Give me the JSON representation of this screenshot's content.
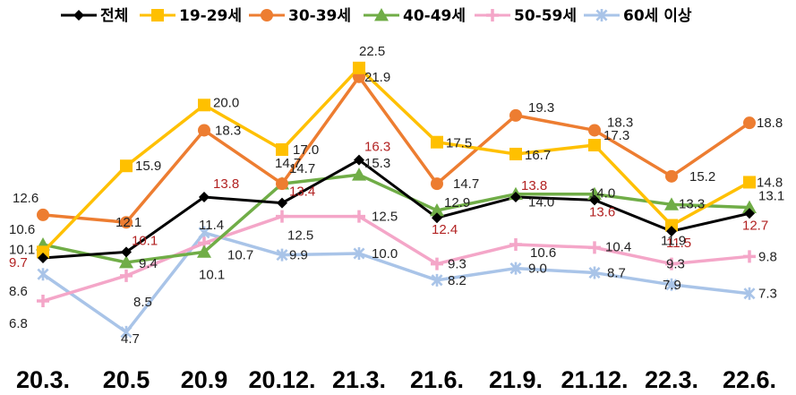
{
  "chart_data": {
    "type": "line",
    "title": "",
    "xlabel": "",
    "ylabel": "",
    "ylim": [
      3,
      24
    ],
    "grid": false,
    "legend_position": "top",
    "categories": [
      "20.3.",
      "20.5",
      "20.9",
      "20.12.",
      "21.3.",
      "21.6.",
      "21.9.",
      "21.12.",
      "22.3.",
      "22.6."
    ],
    "series": [
      {
        "name": "전체",
        "color": "#000000",
        "marker": "diamond",
        "values": [
          9.7,
          10.1,
          13.8,
          13.4,
          16.3,
          12.4,
          13.8,
          13.6,
          11.5,
          12.7
        ]
      },
      {
        "name": "19-29세",
        "color": "#ffc000",
        "marker": "square",
        "values": [
          10.1,
          15.9,
          20.0,
          17.0,
          22.5,
          17.5,
          16.7,
          17.3,
          11.9,
          14.8
        ]
      },
      {
        "name": "30-39세",
        "color": "#ed7d31",
        "marker": "circle",
        "values": [
          12.6,
          12.1,
          18.3,
          14.7,
          21.9,
          14.7,
          19.3,
          18.3,
          15.2,
          18.8
        ]
      },
      {
        "name": "40-49세",
        "color": "#70ad47",
        "marker": "triangle",
        "values": [
          10.6,
          9.4,
          10.1,
          14.7,
          15.3,
          12.9,
          14.0,
          14.0,
          13.3,
          13.1
        ]
      },
      {
        "name": "50-59세",
        "color": "#f4a6c8",
        "marker": "plus",
        "values": [
          6.8,
          8.5,
          10.7,
          12.5,
          12.5,
          9.3,
          10.6,
          10.4,
          9.3,
          9.8
        ]
      },
      {
        "name": "60세 이상",
        "color": "#a9c4e8",
        "marker": "star",
        "values": [
          8.6,
          4.7,
          11.4,
          9.9,
          10.0,
          8.2,
          9.0,
          8.7,
          7.9,
          7.3
        ]
      }
    ],
    "data_label_color_total": "#b22222",
    "data_label_color_other": "#222222"
  }
}
